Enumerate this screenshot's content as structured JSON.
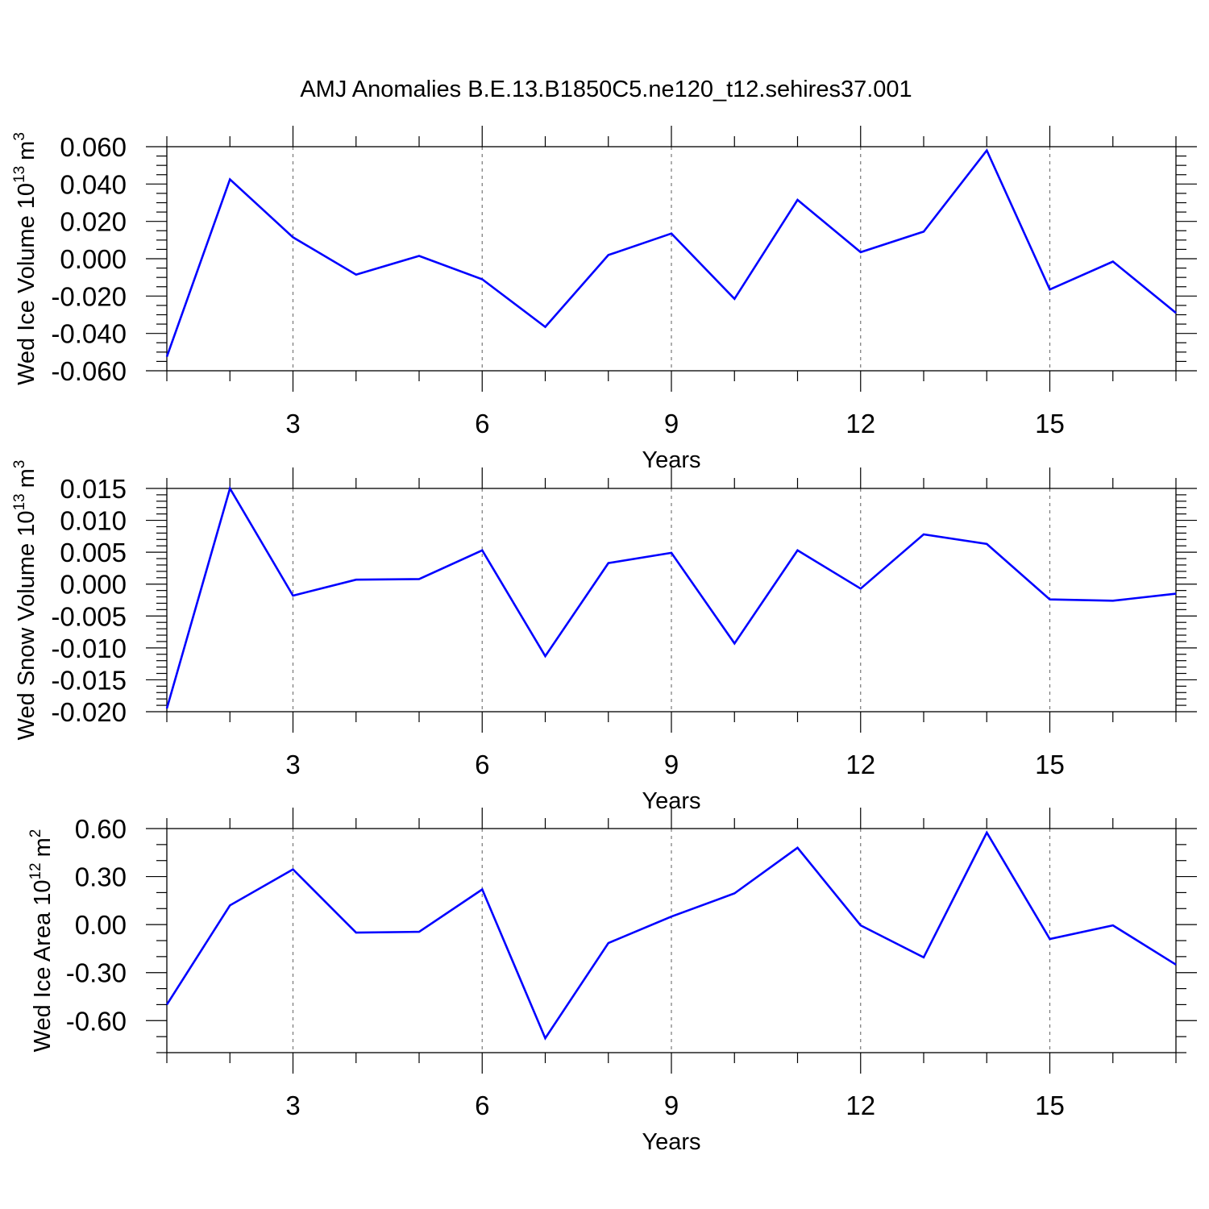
{
  "title": "AMJ Anomalies B.E.13.B1850C5.ne120_t12.sehires37.001",
  "chart_data": [
    {
      "type": "line",
      "ylabel": "Wed Ice Volume 10",
      "ylabel_exp": "13",
      "ylabel_unit": "m",
      "ylabel_unit_exp": "3",
      "xlabel": "Years",
      "xlim": [
        1,
        17
      ],
      "ylim": [
        -0.06,
        0.06
      ],
      "grid": "vertical dashed at major ticks",
      "xticks": [
        3,
        6,
        9,
        12,
        15
      ],
      "xtick_labels": [
        "3",
        "6",
        "9",
        "12",
        "15"
      ],
      "yticks": [
        -0.06,
        -0.04,
        -0.02,
        0.0,
        0.02,
        0.04,
        0.06
      ],
      "ytick_labels": [
        "-0.060",
        "-0.040",
        "-0.020",
        "0.000",
        "0.020",
        "0.040",
        "0.060"
      ],
      "y_minor_step": 0.005,
      "color": "#0000ff",
      "x": [
        1,
        2,
        3,
        4,
        5,
        6,
        7,
        8,
        9,
        10,
        11,
        12,
        13,
        14,
        15,
        16,
        17
      ],
      "values": [
        -0.0525,
        0.0425,
        0.0115,
        -0.0085,
        0.0015,
        -0.011,
        -0.0365,
        0.002,
        0.0135,
        -0.0215,
        0.0315,
        0.0035,
        0.0145,
        0.058,
        -0.0165,
        -0.0015,
        -0.029
      ]
    },
    {
      "type": "line",
      "ylabel": "Wed Snow Volume 10",
      "ylabel_exp": "13",
      "ylabel_unit": "m",
      "ylabel_unit_exp": "3",
      "xlabel": "Years",
      "xlim": [
        1,
        17
      ],
      "ylim": [
        -0.02,
        0.015
      ],
      "grid": "vertical dashed at major ticks",
      "xticks": [
        3,
        6,
        9,
        12,
        15
      ],
      "xtick_labels": [
        "3",
        "6",
        "9",
        "12",
        "15"
      ],
      "yticks": [
        -0.02,
        -0.015,
        -0.01,
        -0.005,
        0.0,
        0.005,
        0.01,
        0.015
      ],
      "ytick_labels": [
        "-0.020",
        "-0.015",
        "-0.010",
        "-0.005",
        "0.000",
        "0.005",
        "0.010",
        "0.015"
      ],
      "y_minor_step": 0.001,
      "color": "#0000ff",
      "x": [
        1,
        2,
        3,
        4,
        5,
        6,
        7,
        8,
        9,
        10,
        11,
        12,
        13,
        14,
        15,
        16,
        17
      ],
      "values": [
        -0.0195,
        0.015,
        -0.0018,
        0.0007,
        0.0008,
        0.0053,
        -0.0113,
        0.0033,
        0.0049,
        -0.0093,
        0.0053,
        -0.0007,
        0.0078,
        0.0063,
        -0.0024,
        -0.0026,
        -0.0015
      ]
    },
    {
      "type": "line",
      "ylabel": "Wed Ice Area 10",
      "ylabel_exp": "12",
      "ylabel_unit": "m",
      "ylabel_unit_exp": "2",
      "xlabel": "Years",
      "xlim": [
        1,
        17
      ],
      "ylim": [
        -0.8,
        0.6
      ],
      "grid": "vertical dashed at major ticks",
      "xticks": [
        3,
        6,
        9,
        12,
        15
      ],
      "xtick_labels": [
        "3",
        "6",
        "9",
        "12",
        "15"
      ],
      "yticks": [
        -0.6,
        -0.3,
        0.0,
        0.3,
        0.6
      ],
      "ytick_labels": [
        "-0.60",
        "-0.30",
        "0.00",
        "0.30",
        "0.60"
      ],
      "y_minor_step": 0.1,
      "color": "#0000ff",
      "x": [
        1,
        2,
        3,
        4,
        5,
        6,
        7,
        8,
        9,
        10,
        11,
        12,
        13,
        14,
        15,
        16,
        17
      ],
      "values": [
        -0.5,
        0.12,
        0.345,
        -0.05,
        -0.045,
        0.22,
        -0.71,
        -0.115,
        0.05,
        0.195,
        0.48,
        -0.005,
        -0.205,
        0.575,
        -0.09,
        -0.005,
        -0.25
      ]
    }
  ]
}
